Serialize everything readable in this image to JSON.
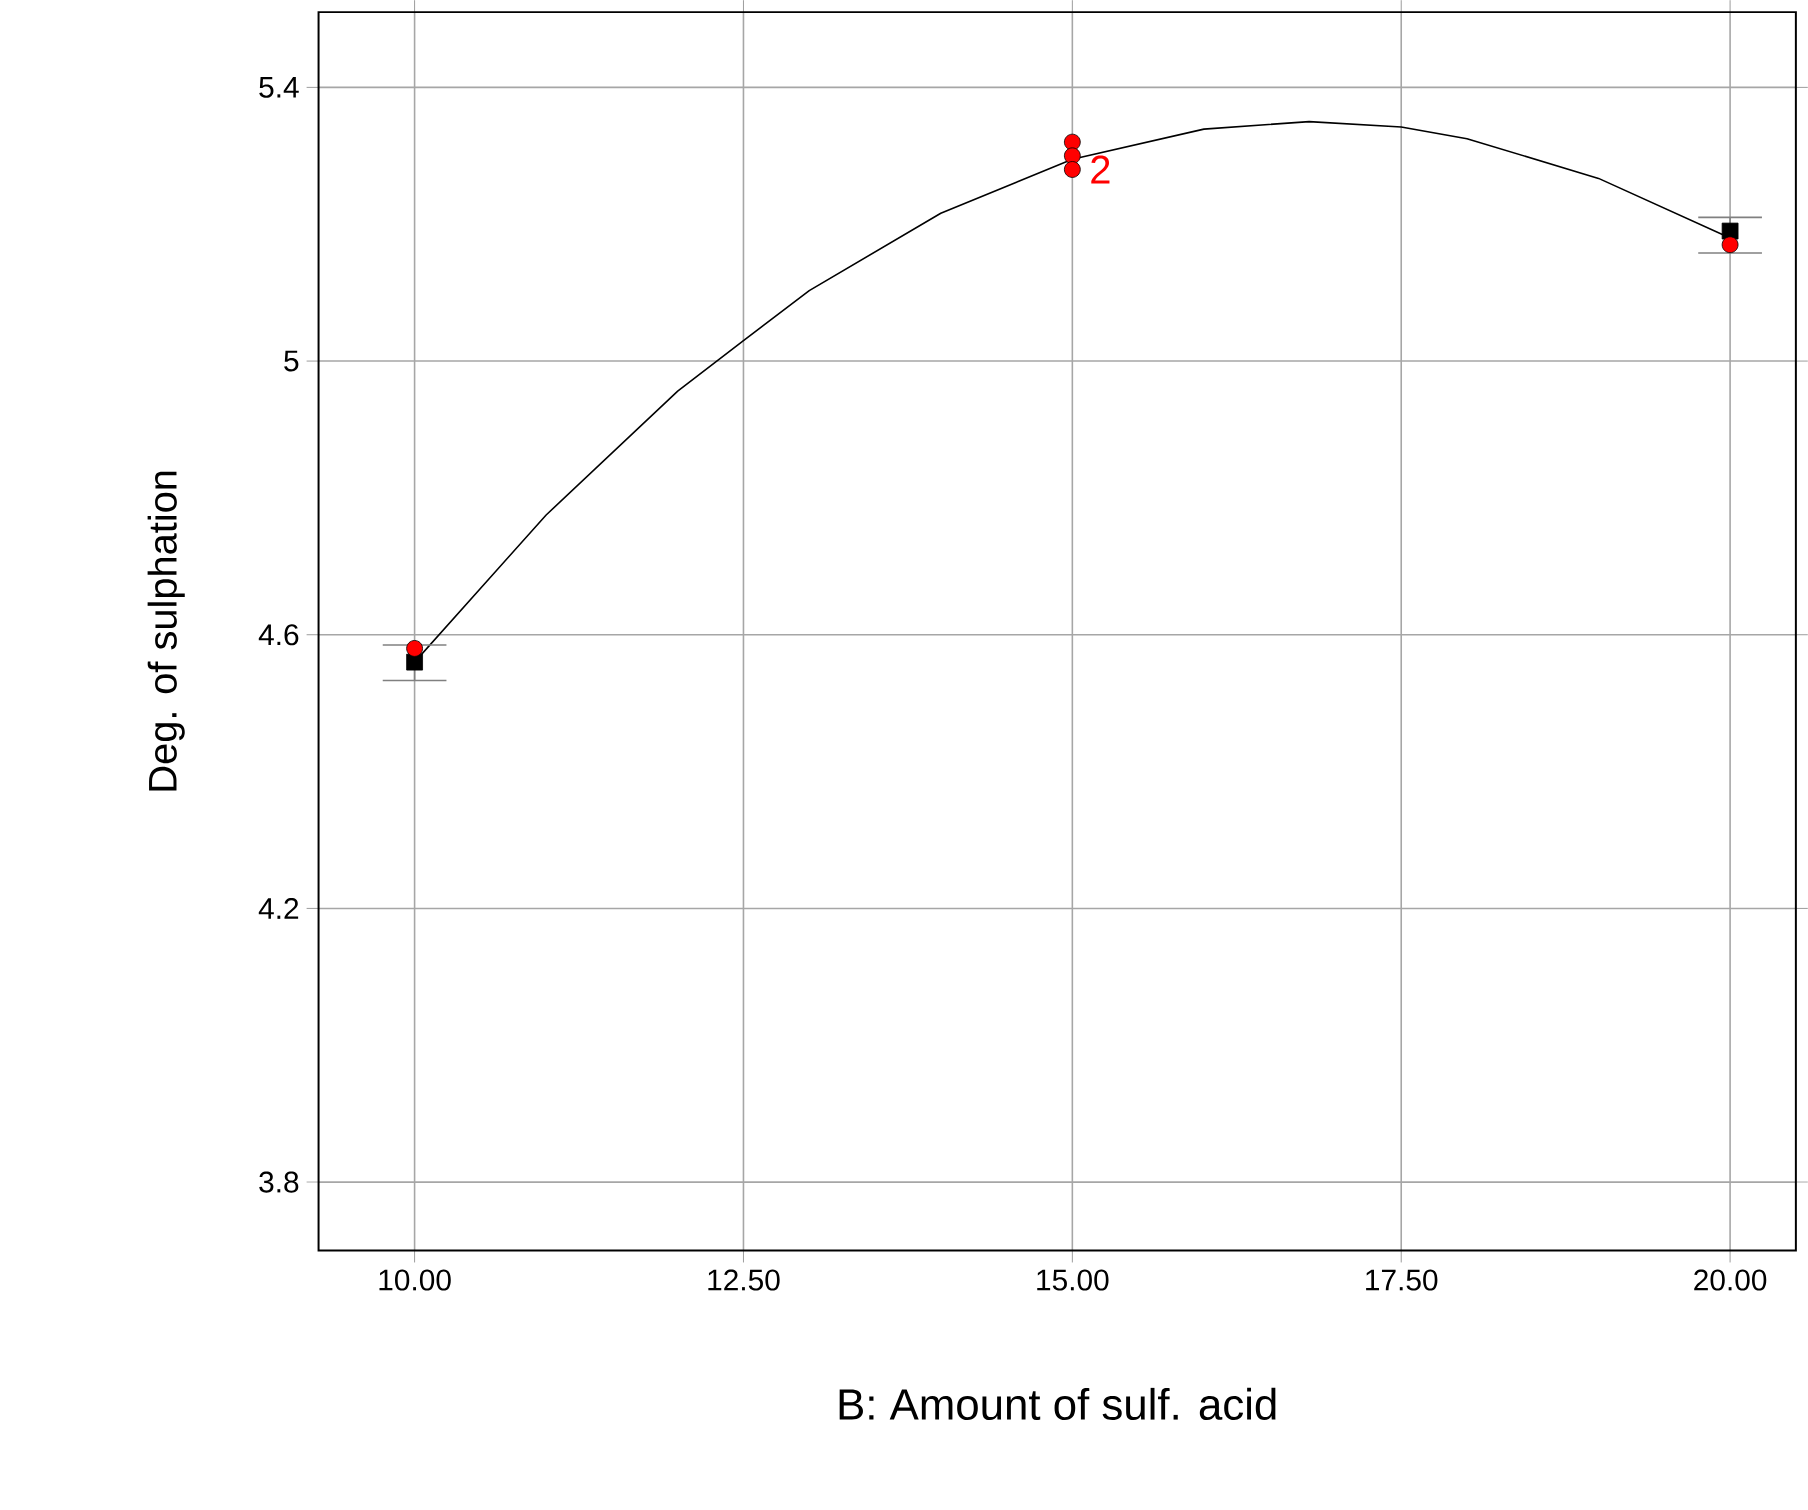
{
  "chart_data": {
    "type": "scatter",
    "xlabel": "B: Amount of sulf. acid",
    "ylabel": "Deg. of sulphation",
    "xlim": [
      9.27,
      20.5
    ],
    "ylim": [
      3.7,
      5.51
    ],
    "xticks": [
      {
        "value": 10,
        "label": "10.00"
      },
      {
        "value": 12.5,
        "label": "12.50"
      },
      {
        "value": 15,
        "label": "15.00"
      },
      {
        "value": 17.5,
        "label": "17.50"
      },
      {
        "value": 20,
        "label": "20.00"
      }
    ],
    "yticks": [
      3.8,
      4.2,
      4.6,
      5,
      5.4
    ],
    "grid": true,
    "series": [
      {
        "type": "line",
        "color": "#000000",
        "marker": "none",
        "x": [
          10,
          11,
          12,
          12.5,
          13,
          14,
          15,
          16,
          16.8,
          17.5,
          18,
          19,
          20
        ],
        "values": [
          4.56,
          4.775,
          4.956,
          5.03,
          5.103,
          5.216,
          5.295,
          5.339,
          5.35,
          5.342,
          5.325,
          5.267,
          5.18
        ]
      },
      {
        "color": "#000000",
        "marker": "square",
        "x": [
          10,
          20
        ],
        "values": [
          4.56,
          5.19
        ],
        "errors": [
          [
            4.533,
            4.585
          ],
          [
            5.158,
            5.21
          ]
        ]
      },
      {
        "color": "#ff0000",
        "marker": "circle",
        "x": [
          10,
          15,
          15,
          15,
          20
        ],
        "values": [
          4.58,
          5.32,
          5.3,
          5.28,
          5.17
        ]
      }
    ],
    "annotations": [
      {
        "text": "2",
        "x": 15,
        "y": 5.28
      }
    ]
  }
}
